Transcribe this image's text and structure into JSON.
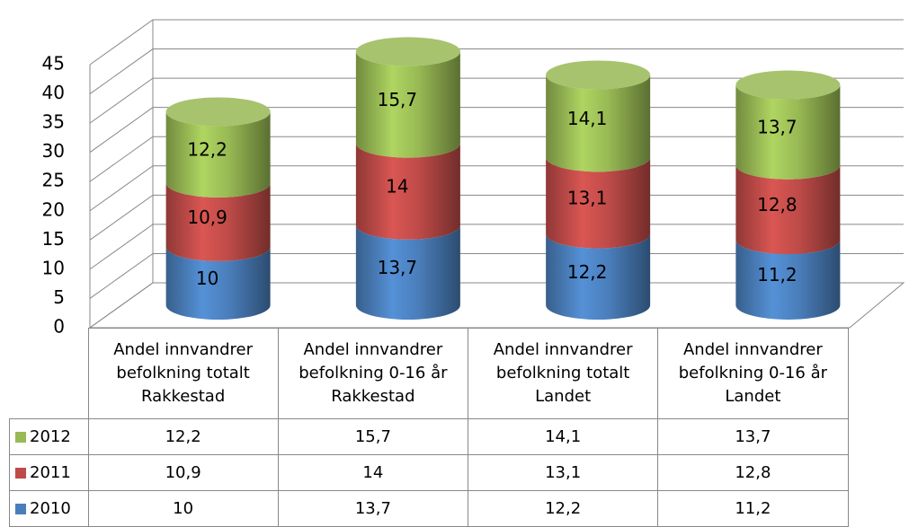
{
  "chart_data": {
    "type": "bar",
    "categories": [
      "Andel innvandrer befolkning totalt Rakkestad",
      "Andel innvandrer befolkning 0-16 år Rakkestad",
      "Andel innvandrer befolkning totalt Landet",
      "Andel innvandrer befolkning 0-16 år Landet"
    ],
    "series": [
      {
        "name": "2010",
        "color": "#4a7ebb",
        "values": [
          10,
          13.7,
          12.2,
          11.2
        ],
        "value_labels": [
          "10",
          "13,7",
          "12,2",
          "11,2"
        ]
      },
      {
        "name": "2011",
        "color": "#be4b48",
        "values": [
          10.9,
          14,
          13.1,
          12.8
        ],
        "value_labels": [
          "10,9",
          "14",
          "13,1",
          "12,8"
        ]
      },
      {
        "name": "2012",
        "color": "#98b954",
        "values": [
          12.2,
          15.7,
          14.1,
          13.7
        ],
        "value_labels": [
          "12,2",
          "15,7",
          "14,1",
          "13,7"
        ]
      }
    ],
    "stacked": true,
    "ylim": [
      0,
      45
    ],
    "yticks": [
      0,
      5,
      10,
      15,
      20,
      25,
      30,
      35,
      40,
      45
    ],
    "grid": true
  }
}
